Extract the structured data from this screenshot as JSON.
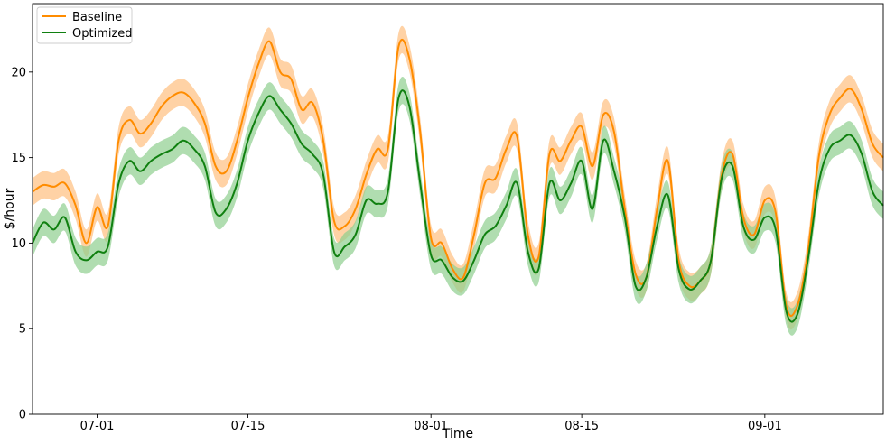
{
  "chart_data": {
    "type": "line",
    "title": "",
    "xlabel": "Time",
    "ylabel": "$/hour",
    "ylim": [
      0,
      24
    ],
    "xlim": [
      "06-25",
      "09-12"
    ],
    "yticks": [
      0,
      5,
      10,
      15,
      20
    ],
    "xticks": [
      {
        "date": "07-01",
        "label": "07-01"
      },
      {
        "date": "07-15",
        "label": "07-15"
      },
      {
        "date": "08-01",
        "label": "08-01"
      },
      {
        "date": "08-15",
        "label": "08-15"
      },
      {
        "date": "09-01",
        "label": "09-01"
      }
    ],
    "grid": false,
    "legend_position": "top-left",
    "band_note": "shaded band around each line, roughly ±0.8 $/hour",
    "series": [
      {
        "name": "Baseline",
        "color": "#ff8c00",
        "band_color": "#ffbf7f",
        "points": [
          [
            "06-25",
            13.0
          ],
          [
            "06-26",
            13.4
          ],
          [
            "06-27",
            13.3
          ],
          [
            "06-28",
            13.5
          ],
          [
            "06-29",
            12.2
          ],
          [
            "06-30",
            10.0
          ],
          [
            "07-01",
            12.1
          ],
          [
            "07-02",
            11.0
          ],
          [
            "07-03",
            16.0
          ],
          [
            "07-04",
            17.2
          ],
          [
            "07-05",
            16.4
          ],
          [
            "07-06",
            17.0
          ],
          [
            "07-07",
            18.0
          ],
          [
            "07-08",
            18.6
          ],
          [
            "07-09",
            18.8
          ],
          [
            "07-10",
            18.2
          ],
          [
            "07-11",
            17.0
          ],
          [
            "07-12",
            14.5
          ],
          [
            "07-13",
            14.2
          ],
          [
            "07-14",
            16.0
          ],
          [
            "07-15",
            18.5
          ],
          [
            "07-16",
            20.5
          ],
          [
            "07-17",
            21.8
          ],
          [
            "07-18",
            20.0
          ],
          [
            "07-19",
            19.6
          ],
          [
            "07-20",
            17.8
          ],
          [
            "07-21",
            18.2
          ],
          [
            "07-22",
            16.0
          ],
          [
            "07-23",
            11.3
          ],
          [
            "07-24",
            11.0
          ],
          [
            "07-25",
            12.0
          ],
          [
            "07-26",
            14.0
          ],
          [
            "07-27",
            15.5
          ],
          [
            "07-28",
            15.5
          ],
          [
            "07-29",
            21.5
          ],
          [
            "07-30",
            20.8
          ],
          [
            "07-31",
            16.5
          ],
          [
            "08-01",
            10.3
          ],
          [
            "08-02",
            10.0
          ],
          [
            "08-03",
            8.5
          ],
          [
            "08-04",
            8.0
          ],
          [
            "08-05",
            10.5
          ],
          [
            "08-06",
            13.5
          ],
          [
            "08-07",
            13.8
          ],
          [
            "08-08",
            15.5
          ],
          [
            "08-09",
            16.2
          ],
          [
            "08-10",
            10.5
          ],
          [
            "08-11",
            9.2
          ],
          [
            "08-12",
            15.2
          ],
          [
            "08-13",
            14.8
          ],
          [
            "08-14",
            16.0
          ],
          [
            "08-15",
            16.8
          ],
          [
            "08-16",
            14.5
          ],
          [
            "08-17",
            17.5
          ],
          [
            "08-18",
            16.5
          ],
          [
            "08-19",
            12.0
          ],
          [
            "08-20",
            8.2
          ],
          [
            "08-21",
            8.0
          ],
          [
            "08-22",
            12.0
          ],
          [
            "08-23",
            14.8
          ],
          [
            "08-24",
            9.0
          ],
          [
            "08-25",
            7.5
          ],
          [
            "08-26",
            7.8
          ],
          [
            "08-27",
            9.0
          ],
          [
            "08-28",
            14.0
          ],
          [
            "08-29",
            15.2
          ],
          [
            "08-30",
            11.5
          ],
          [
            "08-31",
            10.5
          ],
          [
            "09-01",
            12.5
          ],
          [
            "09-02",
            11.8
          ],
          [
            "09-03",
            6.3
          ],
          [
            "09-04",
            6.3
          ],
          [
            "09-05",
            9.5
          ],
          [
            "09-06",
            15.0
          ],
          [
            "09-07",
            17.5
          ],
          [
            "09-08",
            18.5
          ],
          [
            "09-09",
            19.0
          ],
          [
            "09-10",
            17.8
          ],
          [
            "09-11",
            15.8
          ],
          [
            "09-12",
            15.0
          ]
        ]
      },
      {
        "name": "Optimized",
        "color": "#108010",
        "band_color": "#8fce8f",
        "points": [
          [
            "06-25",
            10.0
          ],
          [
            "06-26",
            11.2
          ],
          [
            "06-27",
            10.8
          ],
          [
            "06-28",
            11.5
          ],
          [
            "06-29",
            9.5
          ],
          [
            "06-30",
            9.0
          ],
          [
            "07-01",
            9.5
          ],
          [
            "07-02",
            9.8
          ],
          [
            "07-03",
            13.5
          ],
          [
            "07-04",
            14.8
          ],
          [
            "07-05",
            14.2
          ],
          [
            "07-06",
            14.8
          ],
          [
            "07-07",
            15.2
          ],
          [
            "07-08",
            15.5
          ],
          [
            "07-09",
            16.0
          ],
          [
            "07-10",
            15.5
          ],
          [
            "07-11",
            14.5
          ],
          [
            "07-12",
            11.8
          ],
          [
            "07-13",
            12.0
          ],
          [
            "07-14",
            13.5
          ],
          [
            "07-15",
            16.0
          ],
          [
            "07-16",
            17.6
          ],
          [
            "07-17",
            18.6
          ],
          [
            "07-18",
            17.8
          ],
          [
            "07-19",
            17.0
          ],
          [
            "07-20",
            15.8
          ],
          [
            "07-21",
            15.2
          ],
          [
            "07-22",
            14.0
          ],
          [
            "07-23",
            9.5
          ],
          [
            "07-24",
            9.8
          ],
          [
            "07-25",
            10.5
          ],
          [
            "07-26",
            12.5
          ],
          [
            "07-27",
            12.3
          ],
          [
            "07-28",
            13.0
          ],
          [
            "07-29",
            18.5
          ],
          [
            "07-30",
            18.0
          ],
          [
            "07-31",
            13.5
          ],
          [
            "08-01",
            9.3
          ],
          [
            "08-02",
            9.0
          ],
          [
            "08-03",
            8.0
          ],
          [
            "08-04",
            7.8
          ],
          [
            "08-05",
            9.0
          ],
          [
            "08-06",
            10.5
          ],
          [
            "08-07",
            11.0
          ],
          [
            "08-08",
            12.2
          ],
          [
            "08-09",
            13.5
          ],
          [
            "08-10",
            9.5
          ],
          [
            "08-11",
            8.5
          ],
          [
            "08-12",
            13.5
          ],
          [
            "08-13",
            12.5
          ],
          [
            "08-14",
            13.5
          ],
          [
            "08-15",
            14.8
          ],
          [
            "08-16",
            12.0
          ],
          [
            "08-17",
            16.0
          ],
          [
            "08-18",
            14.2
          ],
          [
            "08-19",
            11.5
          ],
          [
            "08-20",
            7.5
          ],
          [
            "08-21",
            8.0
          ],
          [
            "08-22",
            11.0
          ],
          [
            "08-23",
            12.8
          ],
          [
            "08-24",
            8.5
          ],
          [
            "08-25",
            7.3
          ],
          [
            "08-26",
            7.8
          ],
          [
            "08-27",
            9.0
          ],
          [
            "08-28",
            13.8
          ],
          [
            "08-29",
            14.5
          ],
          [
            "08-30",
            11.0
          ],
          [
            "08-31",
            10.2
          ],
          [
            "09-01",
            11.5
          ],
          [
            "09-02",
            10.8
          ],
          [
            "09-03",
            6.0
          ],
          [
            "09-04",
            5.8
          ],
          [
            "09-05",
            9.0
          ],
          [
            "09-06",
            13.5
          ],
          [
            "09-07",
            15.5
          ],
          [
            "09-08",
            16.0
          ],
          [
            "09-09",
            16.3
          ],
          [
            "09-10",
            15.2
          ],
          [
            "09-11",
            13.0
          ],
          [
            "09-12",
            12.2
          ]
        ]
      }
    ]
  }
}
